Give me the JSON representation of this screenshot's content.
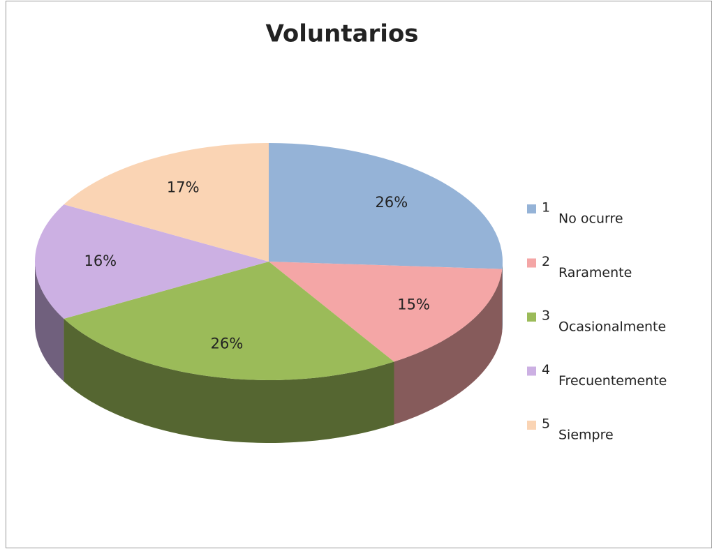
{
  "chart_data": {
    "type": "pie",
    "title": "Voluntarios",
    "codes": [
      "1",
      "2",
      "3",
      "4",
      "5"
    ],
    "categories": [
      "No ocurre",
      "Raramente",
      "Ocasionalmente",
      "Frecuentemente",
      "Siempre"
    ],
    "values": [
      26,
      15,
      26,
      16,
      17
    ],
    "value_labels": [
      "26%",
      "15%",
      "26%",
      "16%",
      "17%"
    ],
    "colors": [
      "#95b3d7",
      "#f4a6a6",
      "#9bbb59",
      "#ccb0e3",
      "#fad4b4"
    ],
    "legend": "right"
  }
}
